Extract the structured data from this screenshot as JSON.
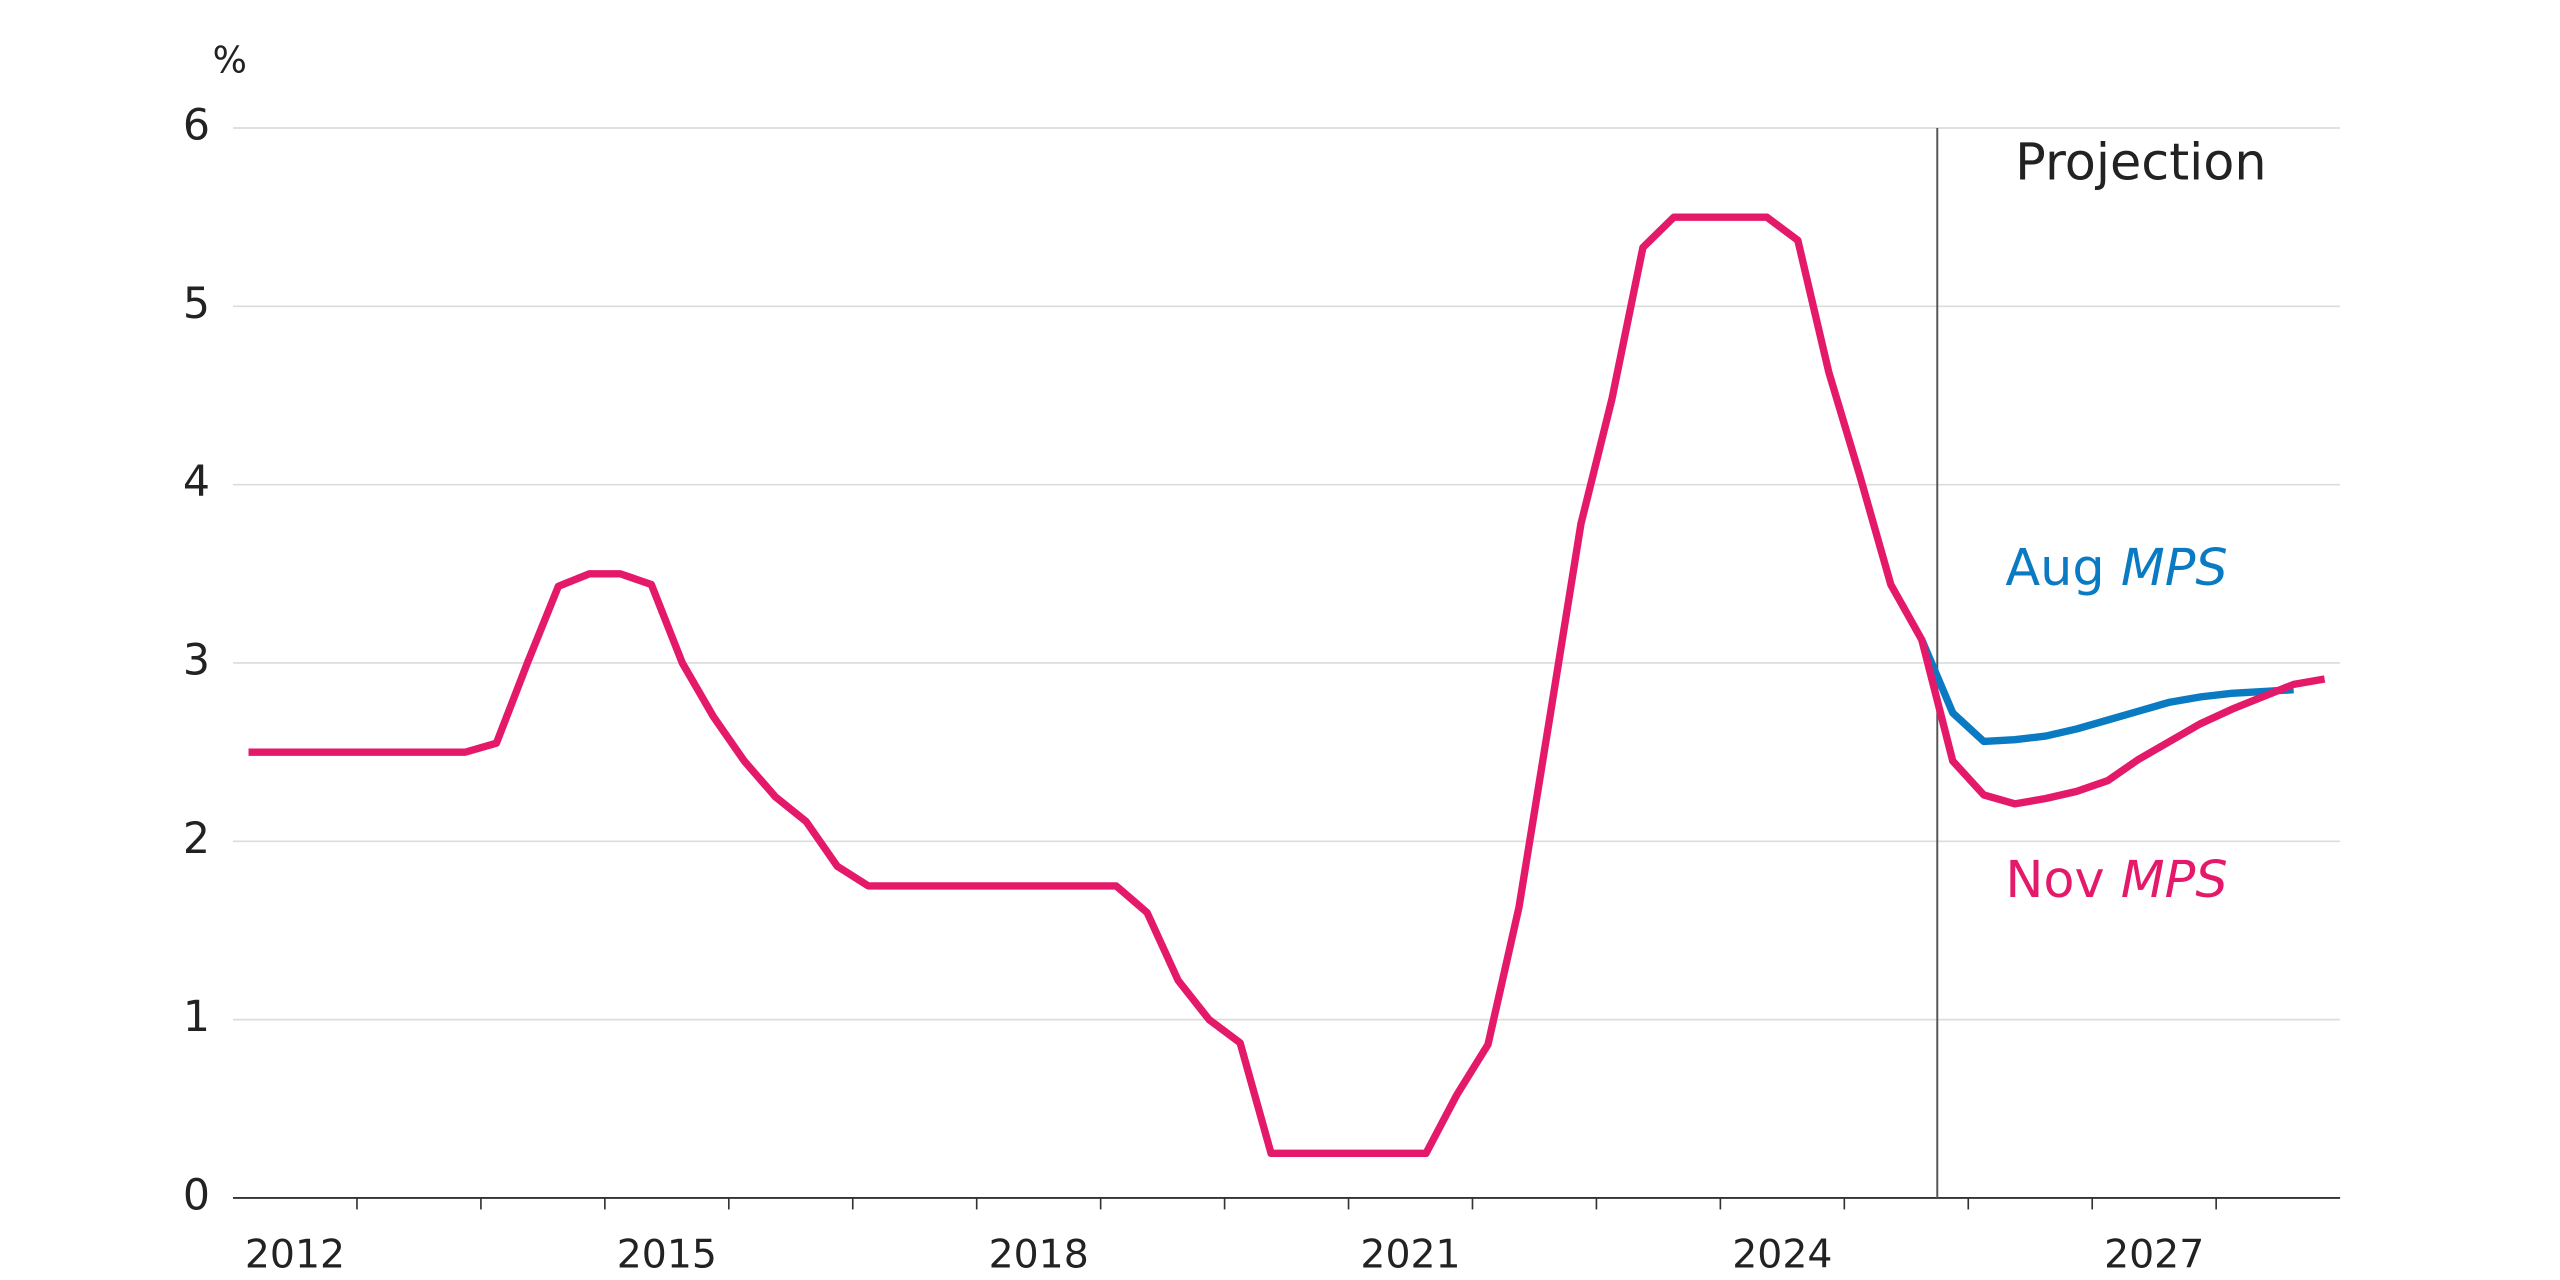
{
  "chart_data": {
    "type": "line",
    "y_unit_label": "%",
    "xlim": [
      2012,
      2029
    ],
    "xticks": [
      {
        "value": 2012.5,
        "label": "2012"
      },
      {
        "value": 2015.5,
        "label": "2015"
      },
      {
        "value": 2018.5,
        "label": "2018"
      },
      {
        "value": 2021.5,
        "label": "2021"
      },
      {
        "value": 2024.5,
        "label": "2024"
      },
      {
        "value": 2027.5,
        "label": "2027"
      }
    ],
    "minor_xticks": [
      2013,
      2014,
      2015,
      2016,
      2017,
      2018,
      2019,
      2020,
      2021,
      2022,
      2023,
      2024,
      2025,
      2026,
      2027,
      2028
    ],
    "ylim": [
      0,
      6
    ],
    "yticks": [
      0,
      1,
      2,
      3,
      4,
      5,
      6
    ],
    "grid": true,
    "projection_x": 2025.75,
    "projection_label": "Projection",
    "x": [
      2012.125,
      2012.375,
      2012.625,
      2012.875,
      2013.125,
      2013.375,
      2013.625,
      2013.875,
      2014.125,
      2014.375,
      2014.625,
      2014.875,
      2015.125,
      2015.375,
      2015.625,
      2015.875,
      2016.125,
      2016.375,
      2016.625,
      2016.875,
      2017.125,
      2017.375,
      2017.625,
      2017.875,
      2018.125,
      2018.375,
      2018.625,
      2018.875,
      2019.125,
      2019.375,
      2019.625,
      2019.875,
      2020.125,
      2020.375,
      2020.625,
      2020.875,
      2021.125,
      2021.375,
      2021.625,
      2021.875,
      2022.125,
      2022.375,
      2022.625,
      2022.875,
      2023.125,
      2023.375,
      2023.625,
      2023.875,
      2024.125,
      2024.375,
      2024.625,
      2024.875,
      2025.125,
      2025.375,
      2025.625,
      2025.875,
      2026.125,
      2026.375,
      2026.625,
      2026.875,
      2027.125,
      2027.375,
      2027.625,
      2027.875,
      2028.125,
      2028.375,
      2028.625,
      2028.875
    ],
    "series": [
      {
        "name": "Nov MPS",
        "color": "#e5196a",
        "values": [
          2.5,
          2.5,
          2.5,
          2.5,
          2.5,
          2.5,
          2.5,
          2.5,
          2.55,
          3.0,
          3.43,
          3.5,
          3.5,
          3.44,
          3.0,
          2.7,
          2.45,
          2.25,
          2.11,
          1.86,
          1.75,
          1.75,
          1.75,
          1.75,
          1.75,
          1.75,
          1.75,
          1.75,
          1.75,
          1.6,
          1.22,
          1.0,
          0.87,
          0.25,
          0.25,
          0.25,
          0.25,
          0.25,
          0.25,
          0.58,
          0.86,
          1.63,
          2.7,
          3.78,
          4.48,
          5.33,
          5.5,
          5.5,
          5.5,
          5.5,
          5.37,
          4.63,
          4.05,
          3.44,
          3.13,
          2.45,
          2.26,
          2.21,
          2.24,
          2.28,
          2.34,
          2.46,
          2.56,
          2.66,
          2.74,
          2.81,
          2.88,
          2.91
        ]
      },
      {
        "name": "Aug MPS",
        "color": "#0a7bc2",
        "values": [
          null,
          null,
          null,
          null,
          null,
          null,
          null,
          null,
          null,
          null,
          null,
          null,
          null,
          null,
          null,
          null,
          null,
          null,
          null,
          null,
          null,
          null,
          null,
          null,
          null,
          null,
          null,
          null,
          null,
          null,
          null,
          null,
          null,
          null,
          null,
          null,
          null,
          null,
          null,
          null,
          null,
          null,
          null,
          null,
          null,
          null,
          null,
          null,
          null,
          null,
          null,
          null,
          null,
          null,
          3.13,
          2.72,
          2.56,
          2.57,
          2.59,
          2.63,
          2.68,
          2.73,
          2.78,
          2.81,
          2.83,
          2.84,
          2.85,
          null
        ]
      }
    ]
  }
}
